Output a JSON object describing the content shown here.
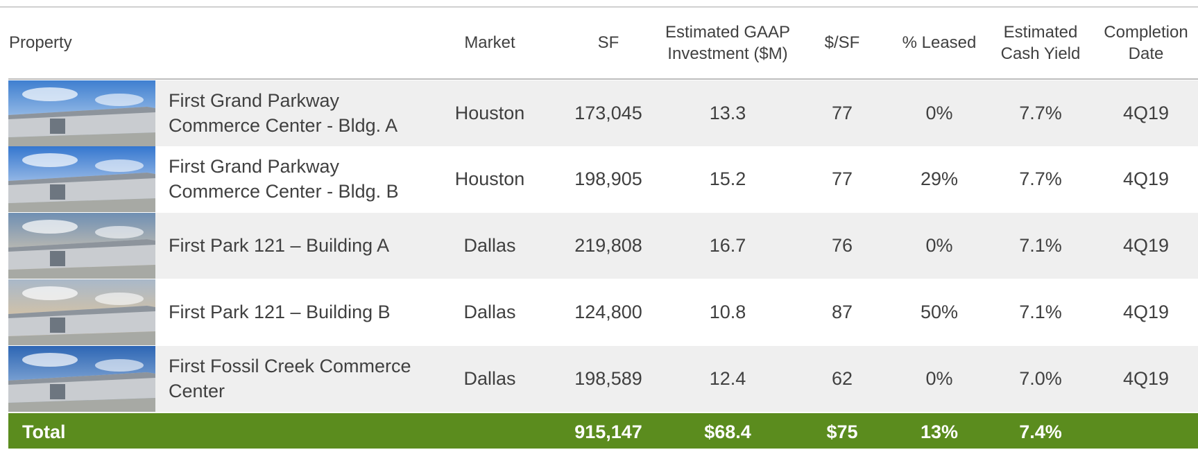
{
  "table": {
    "headers": [
      "Property",
      "Market",
      "SF",
      "Estimated GAAP Investment ($M)",
      "$/SF",
      "% Leased",
      "Estimated Cash Yield",
      "Completion Date"
    ],
    "rows": [
      [
        "First Grand Parkway Commerce Center - Bldg. A",
        "Houston",
        "173,045",
        "13.3",
        "77",
        "0%",
        "7.7%",
        "4Q19"
      ],
      [
        "First Grand Parkway Commerce Center - Bldg. B",
        "Houston",
        "198,905",
        "15.2",
        "77",
        "29%",
        "7.7%",
        "4Q19"
      ],
      [
        "First Park 121 – Building A",
        "Dallas",
        "219,808",
        "16.7",
        "76",
        "0%",
        "7.1%",
        "4Q19"
      ],
      [
        "First Park 121 – Building B",
        "Dallas",
        "124,800",
        "10.8",
        "87",
        "50%",
        "7.1%",
        "4Q19"
      ],
      [
        "First Fossil Creek Commerce Center",
        "Dallas",
        "198,589",
        "12.4",
        "62",
        "0%",
        "7.0%",
        "4Q19"
      ]
    ],
    "total": {
      "label": "Total",
      "values": [
        "915,147",
        "$68.4",
        "$75",
        "13%",
        "7.4%"
      ]
    }
  }
}
